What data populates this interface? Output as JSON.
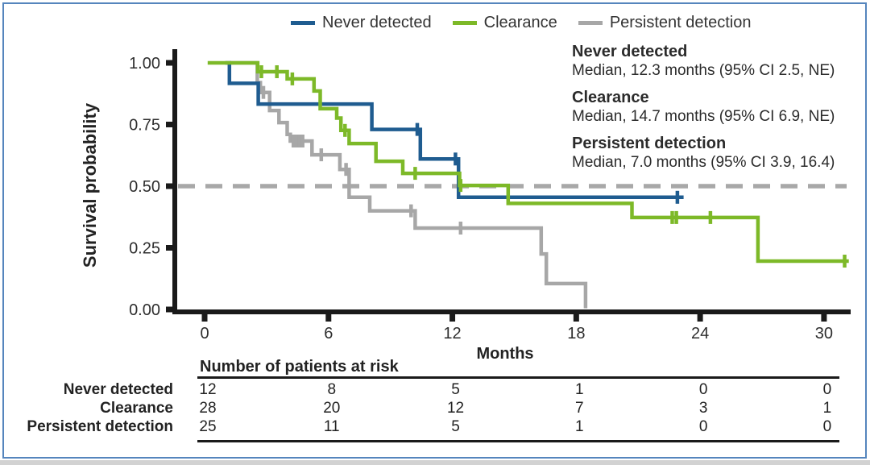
{
  "legend": {
    "items": [
      {
        "label": "Never detected",
        "color": "#1f5c90"
      },
      {
        "label": "Clearance",
        "color": "#7db928"
      },
      {
        "label": "Persistent detection",
        "color": "#a7a7a7"
      }
    ]
  },
  "annotations": [
    {
      "title": "Never detected",
      "text": "Median, 12.3 months (95% CI 2.5, NE)"
    },
    {
      "title": "Clearance",
      "text": "Median, 14.7 months (95% CI 6.9, NE)"
    },
    {
      "title": "Persistent detection",
      "text": "Median, 7.0 months (95% CI 3.9, 16.4)"
    }
  ],
  "chart_data": {
    "type": "line",
    "subtype": "kaplan-meier-step",
    "title": "",
    "xlabel": "Months",
    "ylabel": "Survival probability",
    "x_ticks": [
      0,
      6,
      12,
      18,
      24,
      30
    ],
    "y_ticks": [
      "1.00",
      "0.75",
      "0.50",
      "0.25",
      "0.00"
    ],
    "xlim": [
      0,
      31.3
    ],
    "ylim": [
      0,
      1
    ],
    "grid": false,
    "legend_position": "top",
    "reference_line_y": 0.5,
    "reference_line_color": "#a8a8a8",
    "axis_color": "#1a1a1a",
    "series": [
      {
        "name": "Never detected",
        "color": "#1f5c90",
        "steps": [
          [
            1.0,
            1.0
          ],
          [
            1.2,
            0.917
          ],
          [
            2.6,
            0.833
          ],
          [
            8.1,
            0.73
          ],
          [
            10.45,
            0.61
          ],
          [
            12.3,
            0.455
          ],
          [
            23.2,
            0.455
          ]
        ],
        "censors": [
          [
            10.3,
            0.73
          ],
          [
            12.15,
            0.61
          ],
          [
            22.9,
            0.455
          ]
        ]
      },
      {
        "name": "Clearance",
        "color": "#7db928",
        "steps": [
          [
            0.15,
            1.0
          ],
          [
            2.57,
            0.964
          ],
          [
            4.0,
            0.935
          ],
          [
            5.3,
            0.886
          ],
          [
            5.6,
            0.814
          ],
          [
            6.4,
            0.776
          ],
          [
            6.6,
            0.726
          ],
          [
            7.0,
            0.673
          ],
          [
            8.3,
            0.601
          ],
          [
            9.6,
            0.552
          ],
          [
            12.35,
            0.503
          ],
          [
            14.7,
            0.43
          ],
          [
            20.7,
            0.373
          ],
          [
            26.8,
            0.196
          ],
          [
            31.2,
            0.196
          ]
        ],
        "censors": [
          [
            2.75,
            0.964
          ],
          [
            3.5,
            0.964
          ],
          [
            4.25,
            0.935
          ],
          [
            6.8,
            0.726
          ],
          [
            10.2,
            0.552
          ],
          [
            12.4,
            0.503
          ],
          [
            22.65,
            0.373
          ],
          [
            22.85,
            0.373
          ],
          [
            24.5,
            0.373
          ],
          [
            31.0,
            0.196
          ]
        ]
      },
      {
        "name": "Persistent detection",
        "color": "#a7a7a7",
        "steps": [
          [
            1.2,
            1.0
          ],
          [
            2.55,
            0.92
          ],
          [
            2.7,
            0.88
          ],
          [
            3.15,
            0.807
          ],
          [
            3.6,
            0.758
          ],
          [
            4.0,
            0.71
          ],
          [
            4.15,
            0.683
          ],
          [
            5.2,
            0.627
          ],
          [
            6.55,
            0.568
          ],
          [
            7.0,
            0.455
          ],
          [
            8.0,
            0.4
          ],
          [
            10.2,
            0.33
          ],
          [
            16.3,
            0.225
          ],
          [
            16.55,
            0.105
          ],
          [
            18.45,
            0.005
          ]
        ],
        "censors": [
          [
            2.85,
            0.88
          ],
          [
            4.3,
            0.683
          ],
          [
            4.45,
            0.683
          ],
          [
            4.6,
            0.683
          ],
          [
            4.75,
            0.683
          ],
          [
            5.65,
            0.627
          ],
          [
            6.85,
            0.568
          ],
          [
            10.0,
            0.4
          ],
          [
            12.4,
            0.33
          ]
        ]
      }
    ]
  },
  "risk_table": {
    "header": "Number of patients at risk",
    "months": [
      0,
      6,
      12,
      18,
      24,
      30
    ],
    "rows": [
      {
        "label": "Never detected",
        "values": [
          "12",
          "8",
          "5",
          "1",
          "0",
          "0"
        ]
      },
      {
        "label": "Clearance",
        "values": [
          "28",
          "20",
          "12",
          "7",
          "3",
          "1"
        ]
      },
      {
        "label": "Persistent detection",
        "values": [
          "25",
          "11",
          "5",
          "1",
          "0",
          "0"
        ]
      }
    ]
  }
}
